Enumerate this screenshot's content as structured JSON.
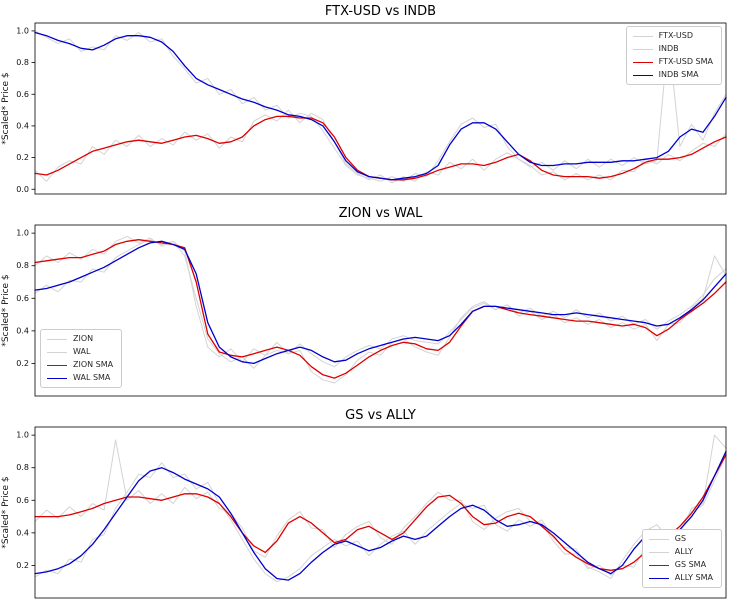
{
  "figure": {
    "background": "#ffffff",
    "colors": {
      "raw_line": "#d3d3d3",
      "sma_red": "#dd0000",
      "sma_blue": "#0000cc",
      "spine": "#000000"
    }
  },
  "chart_data": [
    {
      "type": "line",
      "title": "FTX-USD vs INDB",
      "xlabel": "",
      "ylabel": "*Scaled* Price $",
      "ylim": [
        -0.03,
        1.05
      ],
      "yticks": [
        0.0,
        0.2,
        0.4,
        0.6,
        0.8,
        1.0
      ],
      "grid": false,
      "legend_position": "upper right",
      "series": [
        {
          "name": "FTX-USD",
          "color": "#d3d3d3",
          "width": 1,
          "values": [
            0.12,
            0.05,
            0.14,
            0.18,
            0.16,
            0.27,
            0.22,
            0.31,
            0.27,
            0.34,
            0.27,
            0.32,
            0.28,
            0.36,
            0.31,
            0.35,
            0.26,
            0.33,
            0.3,
            0.43,
            0.47,
            0.43,
            0.5,
            0.42,
            0.48,
            0.44,
            0.3,
            0.16,
            0.1,
            0.06,
            0.09,
            0.04,
            0.08,
            0.05,
            0.11,
            0.09,
            0.17,
            0.13,
            0.19,
            0.12,
            0.19,
            0.23,
            0.19,
            0.15,
            0.09,
            0.11,
            0.06,
            0.1,
            0.06,
            0.09,
            0.06,
            0.12,
            0.11,
            0.19,
            0.16,
            0.22,
            0.18,
            0.24,
            0.29,
            0.27,
            0.35
          ]
        },
        {
          "name": "INDB",
          "color": "#d3d3d3",
          "width": 1,
          "values": [
            1.0,
            0.96,
            0.92,
            0.95,
            0.87,
            0.9,
            0.88,
            0.97,
            0.94,
            0.99,
            0.93,
            0.95,
            0.84,
            0.76,
            0.67,
            0.7,
            0.6,
            0.63,
            0.54,
            0.58,
            0.5,
            0.53,
            0.45,
            0.48,
            0.46,
            0.37,
            0.26,
            0.15,
            0.09,
            0.07,
            0.05,
            0.08,
            0.05,
            0.1,
            0.08,
            0.18,
            0.3,
            0.41,
            0.45,
            0.39,
            0.41,
            0.27,
            0.19,
            0.14,
            0.17,
            0.12,
            0.18,
            0.13,
            0.19,
            0.14,
            0.19,
            0.15,
            0.2,
            0.16,
            0.18,
            0.97,
            0.27,
            0.41,
            0.31,
            0.48,
            0.6
          ]
        },
        {
          "name": "FTX-USD SMA",
          "color": "#dd0000",
          "width": 1.3,
          "values": [
            0.1,
            0.09,
            0.12,
            0.16,
            0.2,
            0.24,
            0.26,
            0.28,
            0.3,
            0.31,
            0.3,
            0.29,
            0.31,
            0.33,
            0.34,
            0.32,
            0.29,
            0.3,
            0.33,
            0.4,
            0.44,
            0.46,
            0.46,
            0.45,
            0.45,
            0.42,
            0.33,
            0.2,
            0.12,
            0.08,
            0.07,
            0.06,
            0.06,
            0.07,
            0.09,
            0.12,
            0.14,
            0.16,
            0.16,
            0.15,
            0.17,
            0.2,
            0.22,
            0.18,
            0.12,
            0.09,
            0.08,
            0.08,
            0.08,
            0.07,
            0.08,
            0.1,
            0.13,
            0.17,
            0.19,
            0.19,
            0.2,
            0.22,
            0.26,
            0.3,
            0.33
          ]
        },
        {
          "name": "INDB SMA",
          "color": "#0000cc",
          "width": 1.3,
          "values": [
            0.99,
            0.97,
            0.94,
            0.92,
            0.89,
            0.88,
            0.91,
            0.95,
            0.97,
            0.97,
            0.96,
            0.93,
            0.87,
            0.78,
            0.7,
            0.66,
            0.63,
            0.6,
            0.57,
            0.55,
            0.52,
            0.5,
            0.47,
            0.46,
            0.44,
            0.4,
            0.3,
            0.18,
            0.11,
            0.08,
            0.07,
            0.06,
            0.07,
            0.08,
            0.1,
            0.15,
            0.28,
            0.38,
            0.42,
            0.42,
            0.38,
            0.3,
            0.22,
            0.17,
            0.15,
            0.15,
            0.16,
            0.16,
            0.17,
            0.17,
            0.17,
            0.18,
            0.18,
            0.19,
            0.2,
            0.24,
            0.33,
            0.38,
            0.36,
            0.46,
            0.58
          ]
        }
      ]
    },
    {
      "type": "line",
      "title": "ZION vs WAL",
      "xlabel": "",
      "ylabel": "*Scaled* Price $",
      "ylim": [
        0.0,
        1.05
      ],
      "yticks": [
        0.2,
        0.4,
        0.6,
        0.8,
        1.0
      ],
      "grid": false,
      "legend_position": "lower left",
      "series": [
        {
          "name": "ZION",
          "color": "#d3d3d3",
          "width": 1,
          "values": [
            0.8,
            0.86,
            0.82,
            0.88,
            0.84,
            0.9,
            0.87,
            0.95,
            0.98,
            0.94,
            0.97,
            0.92,
            0.95,
            0.89,
            0.55,
            0.3,
            0.24,
            0.29,
            0.21,
            0.29,
            0.25,
            0.33,
            0.26,
            0.28,
            0.15,
            0.1,
            0.08,
            0.13,
            0.22,
            0.27,
            0.25,
            0.33,
            0.35,
            0.3,
            0.27,
            0.25,
            0.36,
            0.48,
            0.55,
            0.58,
            0.53,
            0.56,
            0.49,
            0.52,
            0.47,
            0.5,
            0.45,
            0.48,
            0.44,
            0.47,
            0.42,
            0.45,
            0.41,
            0.44,
            0.34,
            0.44,
            0.45,
            0.54,
            0.6,
            0.86,
            0.74
          ]
        },
        {
          "name": "WAL",
          "color": "#d3d3d3",
          "width": 1,
          "values": [
            0.63,
            0.68,
            0.64,
            0.71,
            0.7,
            0.78,
            0.76,
            0.85,
            0.89,
            0.93,
            0.96,
            0.93,
            0.95,
            0.86,
            0.6,
            0.35,
            0.26,
            0.21,
            0.24,
            0.17,
            0.25,
            0.28,
            0.26,
            0.32,
            0.26,
            0.21,
            0.18,
            0.24,
            0.28,
            0.31,
            0.29,
            0.35,
            0.37,
            0.34,
            0.33,
            0.32,
            0.39,
            0.47,
            0.54,
            0.57,
            0.53,
            0.56,
            0.51,
            0.54,
            0.49,
            0.52,
            0.48,
            0.53,
            0.48,
            0.51,
            0.46,
            0.49,
            0.44,
            0.47,
            0.41,
            0.46,
            0.5,
            0.55,
            0.62,
            0.72,
            0.78
          ]
        },
        {
          "name": "ZION SMA",
          "color": "#dd0000",
          "width": 1.3,
          "values": [
            0.82,
            0.83,
            0.84,
            0.85,
            0.85,
            0.87,
            0.89,
            0.93,
            0.95,
            0.96,
            0.95,
            0.94,
            0.93,
            0.91,
            0.7,
            0.38,
            0.27,
            0.25,
            0.24,
            0.26,
            0.28,
            0.3,
            0.28,
            0.25,
            0.18,
            0.13,
            0.11,
            0.14,
            0.19,
            0.24,
            0.28,
            0.31,
            0.33,
            0.32,
            0.29,
            0.28,
            0.33,
            0.43,
            0.52,
            0.55,
            0.55,
            0.53,
            0.51,
            0.5,
            0.49,
            0.48,
            0.47,
            0.46,
            0.46,
            0.45,
            0.44,
            0.43,
            0.44,
            0.42,
            0.37,
            0.41,
            0.47,
            0.52,
            0.57,
            0.63,
            0.7
          ]
        },
        {
          "name": "WAL SMA",
          "color": "#0000cc",
          "width": 1.3,
          "values": [
            0.65,
            0.66,
            0.68,
            0.7,
            0.73,
            0.76,
            0.79,
            0.83,
            0.87,
            0.91,
            0.94,
            0.95,
            0.93,
            0.9,
            0.75,
            0.45,
            0.3,
            0.24,
            0.21,
            0.2,
            0.23,
            0.26,
            0.28,
            0.3,
            0.28,
            0.24,
            0.21,
            0.22,
            0.26,
            0.29,
            0.31,
            0.33,
            0.35,
            0.36,
            0.35,
            0.34,
            0.37,
            0.44,
            0.52,
            0.55,
            0.55,
            0.54,
            0.53,
            0.52,
            0.51,
            0.5,
            0.5,
            0.51,
            0.5,
            0.49,
            0.48,
            0.47,
            0.46,
            0.45,
            0.43,
            0.44,
            0.48,
            0.53,
            0.59,
            0.67,
            0.75
          ]
        }
      ]
    },
    {
      "type": "line",
      "title": "GS vs ALLY",
      "xlabel": "",
      "ylabel": "*Scaled* Price $",
      "ylim": [
        0.0,
        1.05
      ],
      "yticks": [
        0.2,
        0.4,
        0.6,
        0.8,
        1.0
      ],
      "grid": false,
      "legend_position": "lower right",
      "series": [
        {
          "name": "GS",
          "color": "#d3d3d3",
          "width": 1,
          "values": [
            0.47,
            0.54,
            0.49,
            0.56,
            0.5,
            0.58,
            0.54,
            0.97,
            0.6,
            0.66,
            0.58,
            0.64,
            0.58,
            0.68,
            0.61,
            0.65,
            0.55,
            0.52,
            0.43,
            0.29,
            0.25,
            0.38,
            0.48,
            0.53,
            0.43,
            0.42,
            0.31,
            0.39,
            0.44,
            0.47,
            0.37,
            0.33,
            0.43,
            0.5,
            0.58,
            0.65,
            0.6,
            0.6,
            0.47,
            0.42,
            0.49,
            0.53,
            0.55,
            0.47,
            0.46,
            0.35,
            0.27,
            0.27,
            0.18,
            0.2,
            0.14,
            0.2,
            0.19,
            0.31,
            0.3,
            0.41,
            0.4,
            0.55,
            0.58,
            1.0,
            0.92
          ]
        },
        {
          "name": "ALLY",
          "color": "#d3d3d3",
          "width": 1,
          "values": [
            0.13,
            0.17,
            0.15,
            0.24,
            0.22,
            0.36,
            0.39,
            0.55,
            0.65,
            0.76,
            0.74,
            0.83,
            0.74,
            0.76,
            0.67,
            0.71,
            0.58,
            0.48,
            0.36,
            0.24,
            0.15,
            0.1,
            0.13,
            0.18,
            0.26,
            0.31,
            0.36,
            0.32,
            0.35,
            0.26,
            0.33,
            0.38,
            0.41,
            0.33,
            0.41,
            0.47,
            0.53,
            0.58,
            0.55,
            0.57,
            0.45,
            0.41,
            0.48,
            0.44,
            0.48,
            0.37,
            0.31,
            0.3,
            0.19,
            0.16,
            0.12,
            0.23,
            0.33,
            0.41,
            0.45,
            0.37,
            0.44,
            0.53,
            0.57,
            0.72,
            0.88
          ]
        },
        {
          "name": "GS SMA",
          "color": "#dd0000",
          "width": 1.3,
          "values": [
            0.5,
            0.5,
            0.5,
            0.51,
            0.53,
            0.55,
            0.58,
            0.6,
            0.62,
            0.62,
            0.61,
            0.6,
            0.62,
            0.64,
            0.64,
            0.62,
            0.58,
            0.5,
            0.4,
            0.32,
            0.28,
            0.35,
            0.46,
            0.5,
            0.46,
            0.4,
            0.34,
            0.36,
            0.42,
            0.44,
            0.4,
            0.36,
            0.4,
            0.48,
            0.56,
            0.62,
            0.63,
            0.58,
            0.5,
            0.45,
            0.46,
            0.5,
            0.52,
            0.5,
            0.44,
            0.38,
            0.3,
            0.25,
            0.21,
            0.18,
            0.17,
            0.18,
            0.22,
            0.28,
            0.33,
            0.38,
            0.44,
            0.52,
            0.62,
            0.75,
            0.88
          ]
        },
        {
          "name": "ALLY SMA",
          "color": "#0000cc",
          "width": 1.3,
          "values": [
            0.15,
            0.16,
            0.18,
            0.21,
            0.26,
            0.33,
            0.42,
            0.52,
            0.62,
            0.72,
            0.78,
            0.8,
            0.77,
            0.73,
            0.7,
            0.67,
            0.62,
            0.52,
            0.4,
            0.28,
            0.18,
            0.12,
            0.11,
            0.15,
            0.22,
            0.28,
            0.33,
            0.35,
            0.32,
            0.29,
            0.31,
            0.35,
            0.38,
            0.36,
            0.38,
            0.44,
            0.5,
            0.55,
            0.57,
            0.54,
            0.48,
            0.44,
            0.45,
            0.47,
            0.45,
            0.4,
            0.34,
            0.28,
            0.22,
            0.18,
            0.15,
            0.2,
            0.3,
            0.38,
            0.42,
            0.4,
            0.42,
            0.5,
            0.6,
            0.75,
            0.9
          ]
        }
      ]
    }
  ]
}
